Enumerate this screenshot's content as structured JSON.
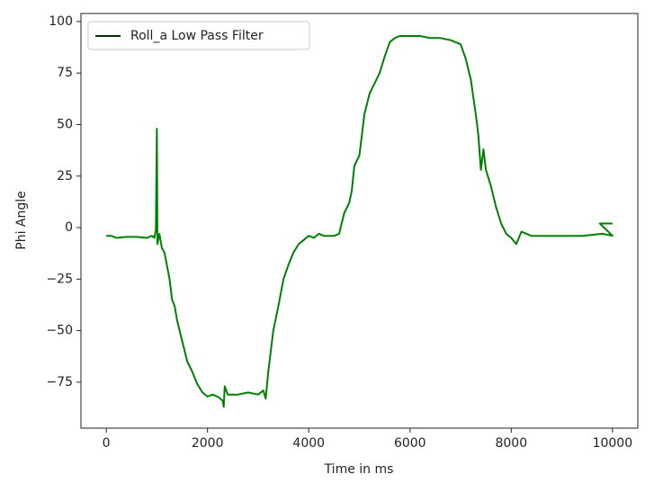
{
  "chart_data": {
    "type": "line",
    "x_label": "Time in ms",
    "y_label": "Phi Angle",
    "x": [
      0,
      100,
      200,
      400,
      600,
      800,
      900,
      950,
      980,
      1000,
      1010,
      1050,
      1100,
      1150,
      1250,
      1300,
      1350,
      1400,
      1500,
      1600,
      1700,
      1800,
      1900,
      2000,
      2100,
      2200,
      2300,
      2320,
      2340,
      2400,
      2600,
      2800,
      3000,
      3100,
      3150,
      3200,
      3300,
      3400,
      3500,
      3600,
      3700,
      3800,
      3900,
      4000,
      4100,
      4200,
      4300,
      4500,
      4600,
      4700,
      4800,
      4850,
      4900,
      5000,
      5050,
      5100,
      5200,
      5300,
      5400,
      5500,
      5600,
      5700,
      5800,
      6000,
      6200,
      6400,
      6600,
      6800,
      7000,
      7100,
      7200,
      7300,
      7350,
      7400,
      7450,
      7500,
      7600,
      7700,
      7800,
      7900,
      8000,
      8100,
      8200,
      8400,
      8600,
      9000,
      9400,
      9800,
      10000,
      9750,
      10000
    ],
    "series": [
      {
        "name": "Roll_a Low Pass Filter",
        "color": "#008000",
        "legend_color": "#003300",
        "values": [
          -4,
          -4,
          -5,
          -4.5,
          -4.5,
          -5,
          -4,
          -5,
          -1,
          48,
          -8,
          -3,
          -10,
          -12,
          -25,
          -35,
          -38,
          -45,
          -55,
          -65,
          -70,
          -76,
          -80,
          -82,
          -81,
          -82,
          -84,
          -87,
          -77,
          -81,
          -81,
          -80,
          -81,
          -79,
          -83,
          -70,
          -50,
          -38,
          -25,
          -18,
          -12,
          -8,
          -6,
          -4,
          -5,
          -3,
          -4,
          -4,
          -3,
          7,
          12,
          18,
          30,
          35,
          45,
          55,
          65,
          70,
          75,
          83,
          90,
          92,
          93,
          93,
          93,
          92,
          92,
          91,
          89,
          82,
          72,
          55,
          45,
          28,
          38,
          28,
          20,
          10,
          2,
          -3,
          -5,
          -8,
          -2,
          -4,
          -4,
          -4,
          -4,
          -3,
          -4,
          2,
          2
        ]
      }
    ],
    "xlim": [
      -500,
      10500
    ],
    "xticks": [
      0,
      2000,
      4000,
      6000,
      8000,
      10000
    ],
    "ylim": [
      -97.3,
      103.9
    ],
    "yticks": [
      {
        "value": -75,
        "label": "−75"
      },
      {
        "value": -50,
        "label": "−50"
      },
      {
        "value": -25,
        "label": "−25"
      },
      0,
      25,
      50,
      75,
      100
    ],
    "legend": "upper left"
  }
}
